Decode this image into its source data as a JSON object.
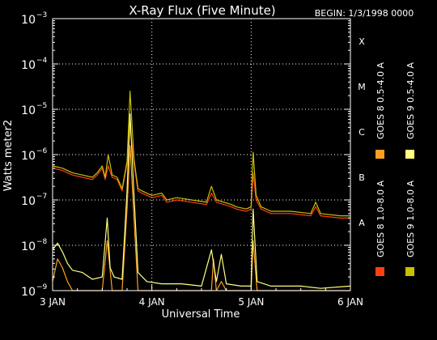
{
  "chart_data": {
    "type": "line",
    "title": "X-Ray Flux (Five Minute)",
    "begin_label": "BEGIN: 1/3/1998 0000",
    "ylabel": "Watts meter2",
    "xlabel": "Universal Time",
    "x_unit": "days since begin",
    "x_range": [
      0,
      3
    ],
    "x_ticks": [
      {
        "value": 0,
        "label": "3 JAN"
      },
      {
        "value": 1,
        "label": "4 JAN"
      },
      {
        "value": 2,
        "label": "5 JAN"
      },
      {
        "value": 3,
        "label": "6 JAN"
      }
    ],
    "y_scale": "log",
    "y_range_exp": [
      -9,
      -3
    ],
    "y_ticks": [
      {
        "exp": -9,
        "label": "10",
        "sup": "−9"
      },
      {
        "exp": -8,
        "label": "10",
        "sup": "−8"
      },
      {
        "exp": -7,
        "label": "10",
        "sup": "−7"
      },
      {
        "exp": -6,
        "label": "10",
        "sup": "−6"
      },
      {
        "exp": -5,
        "label": "10",
        "sup": "−5"
      },
      {
        "exp": -4,
        "label": "10",
        "sup": "−4"
      },
      {
        "exp": -3,
        "label": "10",
        "sup": "−3"
      }
    ],
    "flare_classes": [
      {
        "label": "A",
        "exp": -8
      },
      {
        "label": "B",
        "exp": -7
      },
      {
        "label": "C",
        "exp": -6
      },
      {
        "label": "M",
        "exp": -5
      },
      {
        "label": "X",
        "exp": -4
      }
    ],
    "grid": {
      "horizontal_dotted_at_exp": [
        -8,
        -7,
        -6,
        -5,
        -4
      ],
      "vertical_dotted_at_x": [
        1,
        2
      ]
    },
    "legend_placement": "right, vertical",
    "series": [
      {
        "name": "GOES 8 1.0-8.0 A",
        "color": "#ff4010",
        "points": [
          [
            0.0,
            -6.3
          ],
          [
            0.1,
            -6.35
          ],
          [
            0.2,
            -6.45
          ],
          [
            0.3,
            -6.5
          ],
          [
            0.4,
            -6.55
          ],
          [
            0.45,
            -6.45
          ],
          [
            0.5,
            -6.3
          ],
          [
            0.53,
            -6.55
          ],
          [
            0.56,
            -6.25
          ],
          [
            0.6,
            -6.5
          ],
          [
            0.65,
            -6.55
          ],
          [
            0.7,
            -6.8
          ],
          [
            0.75,
            -6.2
          ],
          [
            0.78,
            -5.4
          ],
          [
            0.82,
            -6.2
          ],
          [
            0.86,
            -6.8
          ],
          [
            0.9,
            -6.85
          ],
          [
            1.0,
            -6.95
          ],
          [
            1.1,
            -6.9
          ],
          [
            1.15,
            -7.05
          ],
          [
            1.25,
            -7.0
          ],
          [
            1.4,
            -7.05
          ],
          [
            1.55,
            -7.1
          ],
          [
            1.6,
            -6.85
          ],
          [
            1.65,
            -7.05
          ],
          [
            1.8,
            -7.15
          ],
          [
            1.85,
            -7.2
          ],
          [
            1.95,
            -7.25
          ],
          [
            2.0,
            -7.2
          ],
          [
            2.02,
            -6.4
          ],
          [
            2.05,
            -7.0
          ],
          [
            2.1,
            -7.2
          ],
          [
            2.2,
            -7.3
          ],
          [
            2.4,
            -7.3
          ],
          [
            2.6,
            -7.35
          ],
          [
            2.65,
            -7.15
          ],
          [
            2.7,
            -7.35
          ],
          [
            2.9,
            -7.4
          ],
          [
            3.0,
            -7.4
          ]
        ]
      },
      {
        "name": "GOES 8 0.5-4.0 A",
        "color": "#ffa020",
        "points": [
          [
            0.0,
            -8.8
          ],
          [
            0.05,
            -8.3
          ],
          [
            0.1,
            -8.5
          ],
          [
            0.15,
            -8.8
          ],
          [
            0.2,
            -9.0
          ],
          [
            0.3,
            -9.0
          ],
          [
            0.5,
            -9.0
          ],
          [
            0.55,
            -7.9
          ],
          [
            0.6,
            -9.0
          ],
          [
            0.7,
            -9.0
          ],
          [
            0.75,
            -7.2
          ],
          [
            0.78,
            -5.8
          ],
          [
            0.82,
            -7.4
          ],
          [
            0.86,
            -9.0
          ],
          [
            1.0,
            -9.0
          ],
          [
            1.6,
            -9.0
          ],
          [
            1.62,
            -8.3
          ],
          [
            1.65,
            -9.0
          ],
          [
            1.7,
            -8.8
          ],
          [
            1.75,
            -9.0
          ],
          [
            2.0,
            -9.0
          ],
          [
            2.02,
            -7.9
          ],
          [
            2.06,
            -9.0
          ],
          [
            2.4,
            -9.0
          ],
          [
            3.0,
            -9.0
          ]
        ]
      },
      {
        "name": "GOES 9 1.0-8.0 A",
        "color": "#c8c000",
        "points": [
          [
            0.0,
            -6.25
          ],
          [
            0.1,
            -6.3
          ],
          [
            0.2,
            -6.4
          ],
          [
            0.3,
            -6.45
          ],
          [
            0.4,
            -6.5
          ],
          [
            0.45,
            -6.4
          ],
          [
            0.5,
            -6.25
          ],
          [
            0.53,
            -6.5
          ],
          [
            0.56,
            -6.0
          ],
          [
            0.6,
            -6.45
          ],
          [
            0.65,
            -6.5
          ],
          [
            0.7,
            -6.75
          ],
          [
            0.75,
            -6.15
          ],
          [
            0.78,
            -4.6
          ],
          [
            0.82,
            -6.1
          ],
          [
            0.86,
            -6.75
          ],
          [
            0.9,
            -6.8
          ],
          [
            1.0,
            -6.9
          ],
          [
            1.1,
            -6.85
          ],
          [
            1.15,
            -7.0
          ],
          [
            1.25,
            -6.95
          ],
          [
            1.4,
            -7.0
          ],
          [
            1.55,
            -7.05
          ],
          [
            1.6,
            -6.7
          ],
          [
            1.65,
            -7.0
          ],
          [
            1.8,
            -7.1
          ],
          [
            1.85,
            -7.15
          ],
          [
            1.95,
            -7.2
          ],
          [
            2.0,
            -7.15
          ],
          [
            2.02,
            -5.95
          ],
          [
            2.05,
            -6.9
          ],
          [
            2.1,
            -7.15
          ],
          [
            2.2,
            -7.25
          ],
          [
            2.4,
            -7.25
          ],
          [
            2.6,
            -7.3
          ],
          [
            2.65,
            -7.05
          ],
          [
            2.7,
            -7.3
          ],
          [
            2.9,
            -7.35
          ],
          [
            3.0,
            -7.35
          ]
        ]
      },
      {
        "name": "GOES 9 0.5-4.0 A",
        "color": "#ffff80",
        "points": [
          [
            0.0,
            -8.1
          ],
          [
            0.05,
            -7.95
          ],
          [
            0.1,
            -8.15
          ],
          [
            0.15,
            -8.4
          ],
          [
            0.2,
            -8.55
          ],
          [
            0.3,
            -8.6
          ],
          [
            0.4,
            -8.75
          ],
          [
            0.5,
            -8.7
          ],
          [
            0.55,
            -7.4
          ],
          [
            0.58,
            -8.5
          ],
          [
            0.62,
            -8.7
          ],
          [
            0.7,
            -8.75
          ],
          [
            0.75,
            -6.8
          ],
          [
            0.78,
            -5.1
          ],
          [
            0.82,
            -6.9
          ],
          [
            0.86,
            -8.6
          ],
          [
            0.95,
            -8.8
          ],
          [
            1.1,
            -8.85
          ],
          [
            1.3,
            -8.85
          ],
          [
            1.5,
            -8.9
          ],
          [
            1.6,
            -8.1
          ],
          [
            1.65,
            -8.8
          ],
          [
            1.7,
            -8.2
          ],
          [
            1.75,
            -8.85
          ],
          [
            1.9,
            -8.9
          ],
          [
            2.0,
            -8.9
          ],
          [
            2.02,
            -7.2
          ],
          [
            2.06,
            -8.8
          ],
          [
            2.2,
            -8.9
          ],
          [
            2.5,
            -8.9
          ],
          [
            2.7,
            -8.95
          ],
          [
            3.0,
            -8.9
          ]
        ]
      }
    ],
    "legend": [
      {
        "label": "GOES 8 1.0-8.0 A",
        "color": "#ff4010"
      },
      {
        "label": "GOES 8 0.5-4.0 A",
        "color": "#ffa020"
      },
      {
        "label": "GOES 9 1.0-8.0 A",
        "color": "#c8c000"
      },
      {
        "label": "GOES 9 0.5-4.0 A",
        "color": "#ffff80"
      }
    ]
  }
}
